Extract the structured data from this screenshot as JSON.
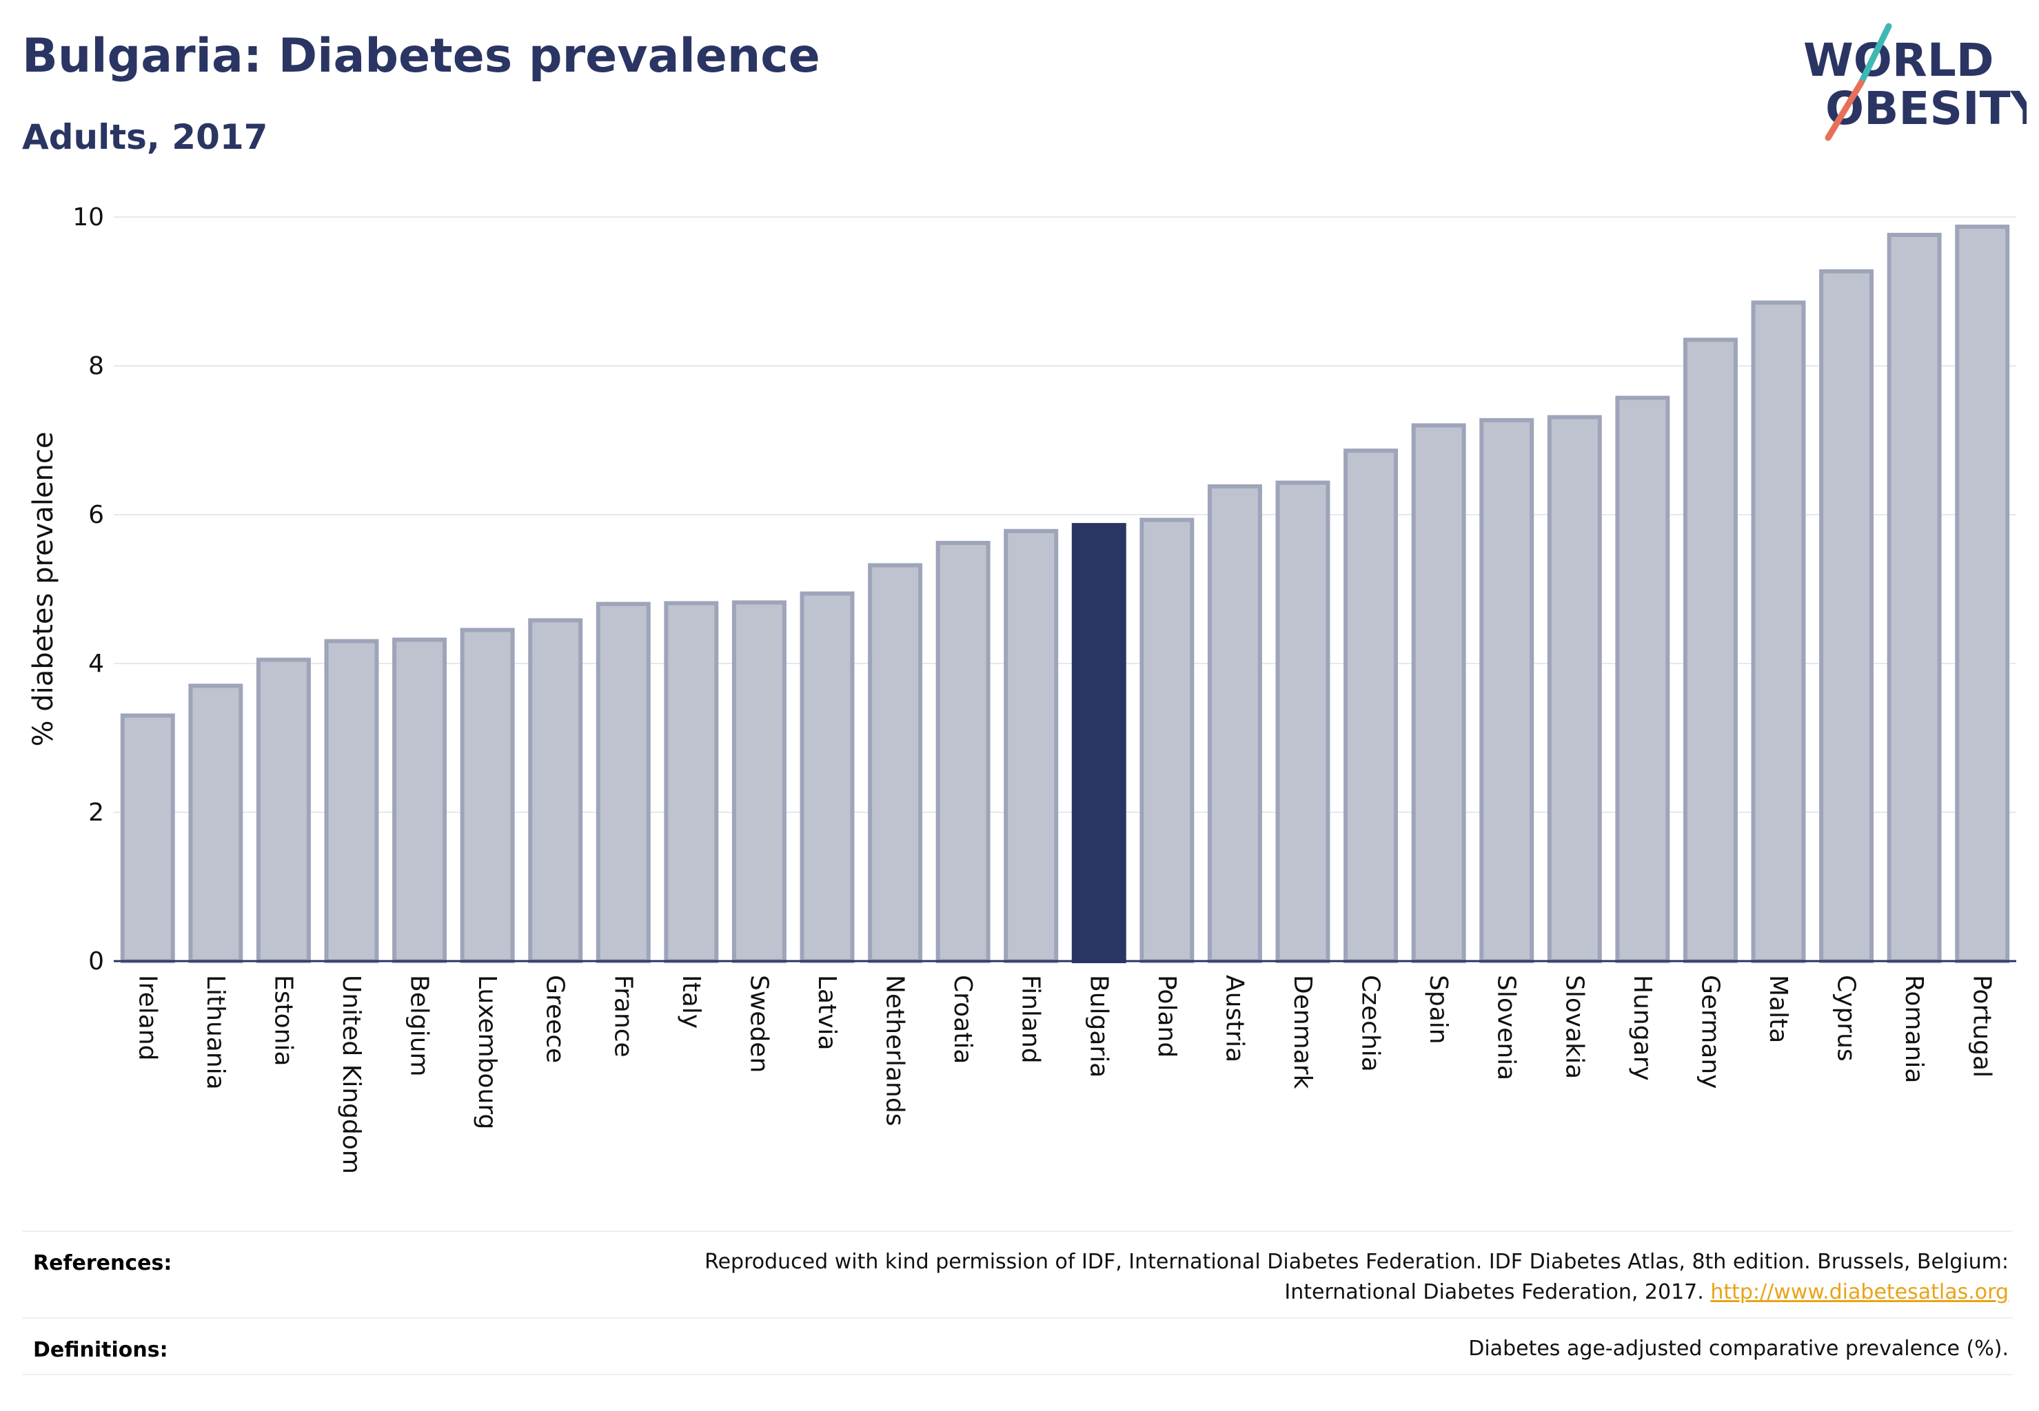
{
  "header": {
    "title": "Bulgaria: Diabetes prevalence",
    "subtitle": "Adults, 2017"
  },
  "logo": {
    "line1": "WORLD",
    "line2": "OBESITY",
    "colors": {
      "text": "#2a3563",
      "slash_top": "#3fb8b4",
      "slash_bottom": "#e8705a"
    }
  },
  "chart_data": {
    "type": "bar",
    "ylabel": "% diabetes prevalence",
    "xlabel": "",
    "ylim": [
      0,
      10
    ],
    "yticks": [
      0,
      2,
      4,
      6,
      8,
      10
    ],
    "grid": true,
    "highlight": "Bulgaria",
    "colors": {
      "bar": "#bfc3cf",
      "bar_stroke": "#9ea4b9",
      "highlight": "#2a3563",
      "grid": "#e6e8ee",
      "axis": "#2a3563"
    },
    "categories": [
      "Ireland",
      "Lithuania",
      "Estonia",
      "United Kingdom",
      "Belgium",
      "Luxembourg",
      "Greece",
      "France",
      "Italy",
      "Sweden",
      "Latvia",
      "Netherlands",
      "Croatia",
      "Finland",
      "Bulgaria",
      "Poland",
      "Austria",
      "Denmark",
      "Czechia",
      "Spain",
      "Slovenia",
      "Slovakia",
      "Hungary",
      "Germany",
      "Malta",
      "Cyprus",
      "Romania",
      "Portugal"
    ],
    "values": [
      3.3,
      3.7,
      4.05,
      4.3,
      4.32,
      4.45,
      4.58,
      4.8,
      4.81,
      4.82,
      4.94,
      5.32,
      5.62,
      5.78,
      5.86,
      5.93,
      6.38,
      6.43,
      6.86,
      7.2,
      7.27,
      7.31,
      7.57,
      8.35,
      8.85,
      9.27,
      9.76,
      9.87
    ]
  },
  "footer": {
    "references_label": "References:",
    "references_text_1": "Reproduced with kind permission of IDF, International Diabetes Federation. IDF Diabetes Atlas, 8th edition. Brussels, Belgium:",
    "references_text_2": "International Diabetes Federation, 2017.",
    "references_link": "http://www.diabetesatlas.org",
    "definitions_label": "Definitions:",
    "definitions_text": "Diabetes age-adjusted comparative prevalence (%)."
  }
}
